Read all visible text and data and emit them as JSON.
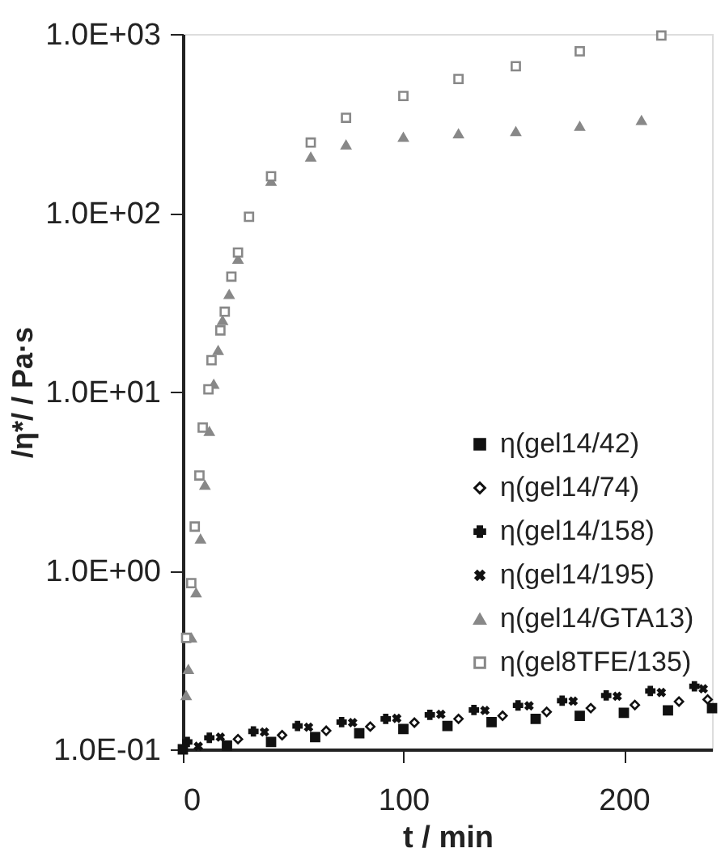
{
  "chart_data": {
    "type": "scatter",
    "xlabel": "t / min",
    "ylabel": "/η*/ / Pa·s",
    "xlim": [
      0,
      240
    ],
    "xticks": [
      0,
      100,
      200
    ],
    "ylim": [
      0.1,
      1000
    ],
    "log": true,
    "yticks": [
      {
        "value": 0.1,
        "label": "1.0E-01"
      },
      {
        "value": 1,
        "label": "1.0E+00"
      },
      {
        "value": 10,
        "label": "1.0E+01"
      },
      {
        "value": 100,
        "label": "1.0E+02"
      },
      {
        "value": 1000,
        "label": "1.0E+03"
      }
    ],
    "grid": false,
    "legend": "right",
    "series": [
      {
        "name": "η(gel14/42)",
        "color": "#111111",
        "marker": "square",
        "x": [
          0,
          20,
          40,
          60,
          80,
          100,
          120,
          140,
          160,
          180,
          200,
          220,
          240
        ],
        "values": [
          0.1,
          0.105,
          0.11,
          0.117,
          0.123,
          0.13,
          0.135,
          0.142,
          0.148,
          0.154,
          0.16,
          0.165,
          0.17
        ]
      },
      {
        "name": "η(gel14/74)",
        "color": "#111111",
        "marker": "diamond",
        "x": [
          25,
          45,
          65,
          85,
          105,
          125,
          145,
          165,
          185,
          205,
          225,
          238
        ],
        "values": [
          0.114,
          0.12,
          0.127,
          0.134,
          0.141,
          0.148,
          0.154,
          0.162,
          0.17,
          0.177,
          0.185,
          0.19
        ]
      },
      {
        "name": "η(gel14/158)",
        "color": "#111111",
        "marker": "cross",
        "x": [
          2,
          12,
          32,
          52,
          72,
          92,
          112,
          132,
          152,
          172,
          192,
          212,
          232
        ],
        "values": [
          0.11,
          0.116,
          0.126,
          0.135,
          0.142,
          0.148,
          0.156,
          0.166,
          0.176,
          0.187,
          0.2,
          0.212,
          0.225
        ]
      },
      {
        "name": "η(gel14/195)",
        "color": "#111111",
        "marker": "x",
        "x": [
          7,
          17,
          37,
          57,
          77,
          97,
          117,
          137,
          157,
          177,
          197,
          217,
          236
        ],
        "values": [
          0.104,
          0.117,
          0.125,
          0.133,
          0.141,
          0.149,
          0.157,
          0.165,
          0.175,
          0.186,
          0.198,
          0.208,
          0.218
        ]
      },
      {
        "name": "η(gel14/GTA13)",
        "color": "#888888",
        "marker": "triangle",
        "x": [
          1.5,
          2.5,
          3.9,
          6,
          8,
          10,
          12,
          14,
          16,
          18,
          21,
          25,
          40,
          58,
          74,
          100,
          125,
          151,
          180,
          208
        ],
        "values": [
          0.2,
          0.28,
          0.42,
          0.75,
          1.5,
          3.0,
          6,
          11,
          17,
          25,
          35,
          55,
          150,
          205,
          240,
          265,
          277,
          285,
          305,
          329
        ]
      },
      {
        "name": "η(gel8TFE/135)",
        "color": "#888888",
        "marker": "square",
        "x": [
          1.5,
          3.8,
          5.4,
          7.5,
          9,
          11.6,
          13,
          17,
          19,
          22,
          25,
          30,
          40,
          58,
          74,
          100,
          125,
          151,
          180,
          217
        ],
        "values": [
          0.42,
          0.85,
          1.76,
          3.4,
          6.3,
          10.3,
          15,
          22,
          28,
          44,
          60,
          95,
          160,
          247,
          340,
          450,
          560,
          660,
          800,
          980
        ]
      }
    ]
  }
}
